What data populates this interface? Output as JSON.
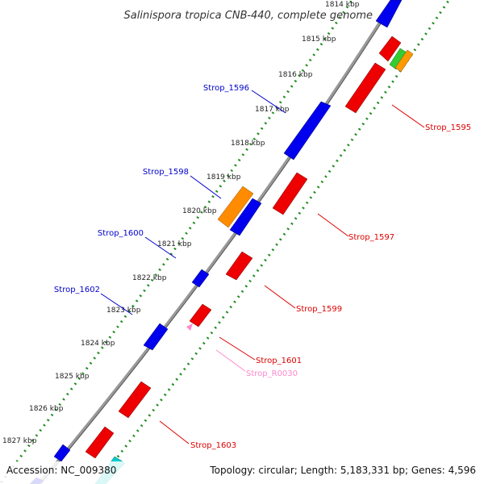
{
  "title": "Salinispora tropica CNB-440, complete genome",
  "footer": {
    "accession": "Accession: NC_009380",
    "summary": "Topology: circular; Length: 5,183,331 bp; Genes: 4,596"
  },
  "ticks": [
    "1814 kbp",
    "1815 kbp",
    "1816 kbp",
    "1817 kbp",
    "1818 kbp",
    "1819 kbp",
    "1820 kbp",
    "1821 kbp",
    "1822 kbp",
    "1823 kbp",
    "1824 kbp",
    "1825 kbp",
    "1826 kbp",
    "1827 kbp"
  ],
  "gene_labels": [
    "Strop_1595",
    "Strop_1596",
    "Strop_1597",
    "Strop_1598",
    "Strop_1599",
    "Strop_1600",
    "Strop_1601",
    "Strop_R0030",
    "Strop_1602",
    "Strop_1603"
  ],
  "colors": {
    "forward_cds": "#0000ee",
    "reverse_cds": "#ee0000",
    "forward_label": "#0000cc",
    "reverse_label": "#dd0000",
    "rna_label": "#ff88cc",
    "highlight_orange": "#ff8c00",
    "highlight_green": "#33cc33",
    "highlight_cyan": "#00cccc",
    "backbone": "#888888",
    "tick_dots": "#228b22"
  }
}
